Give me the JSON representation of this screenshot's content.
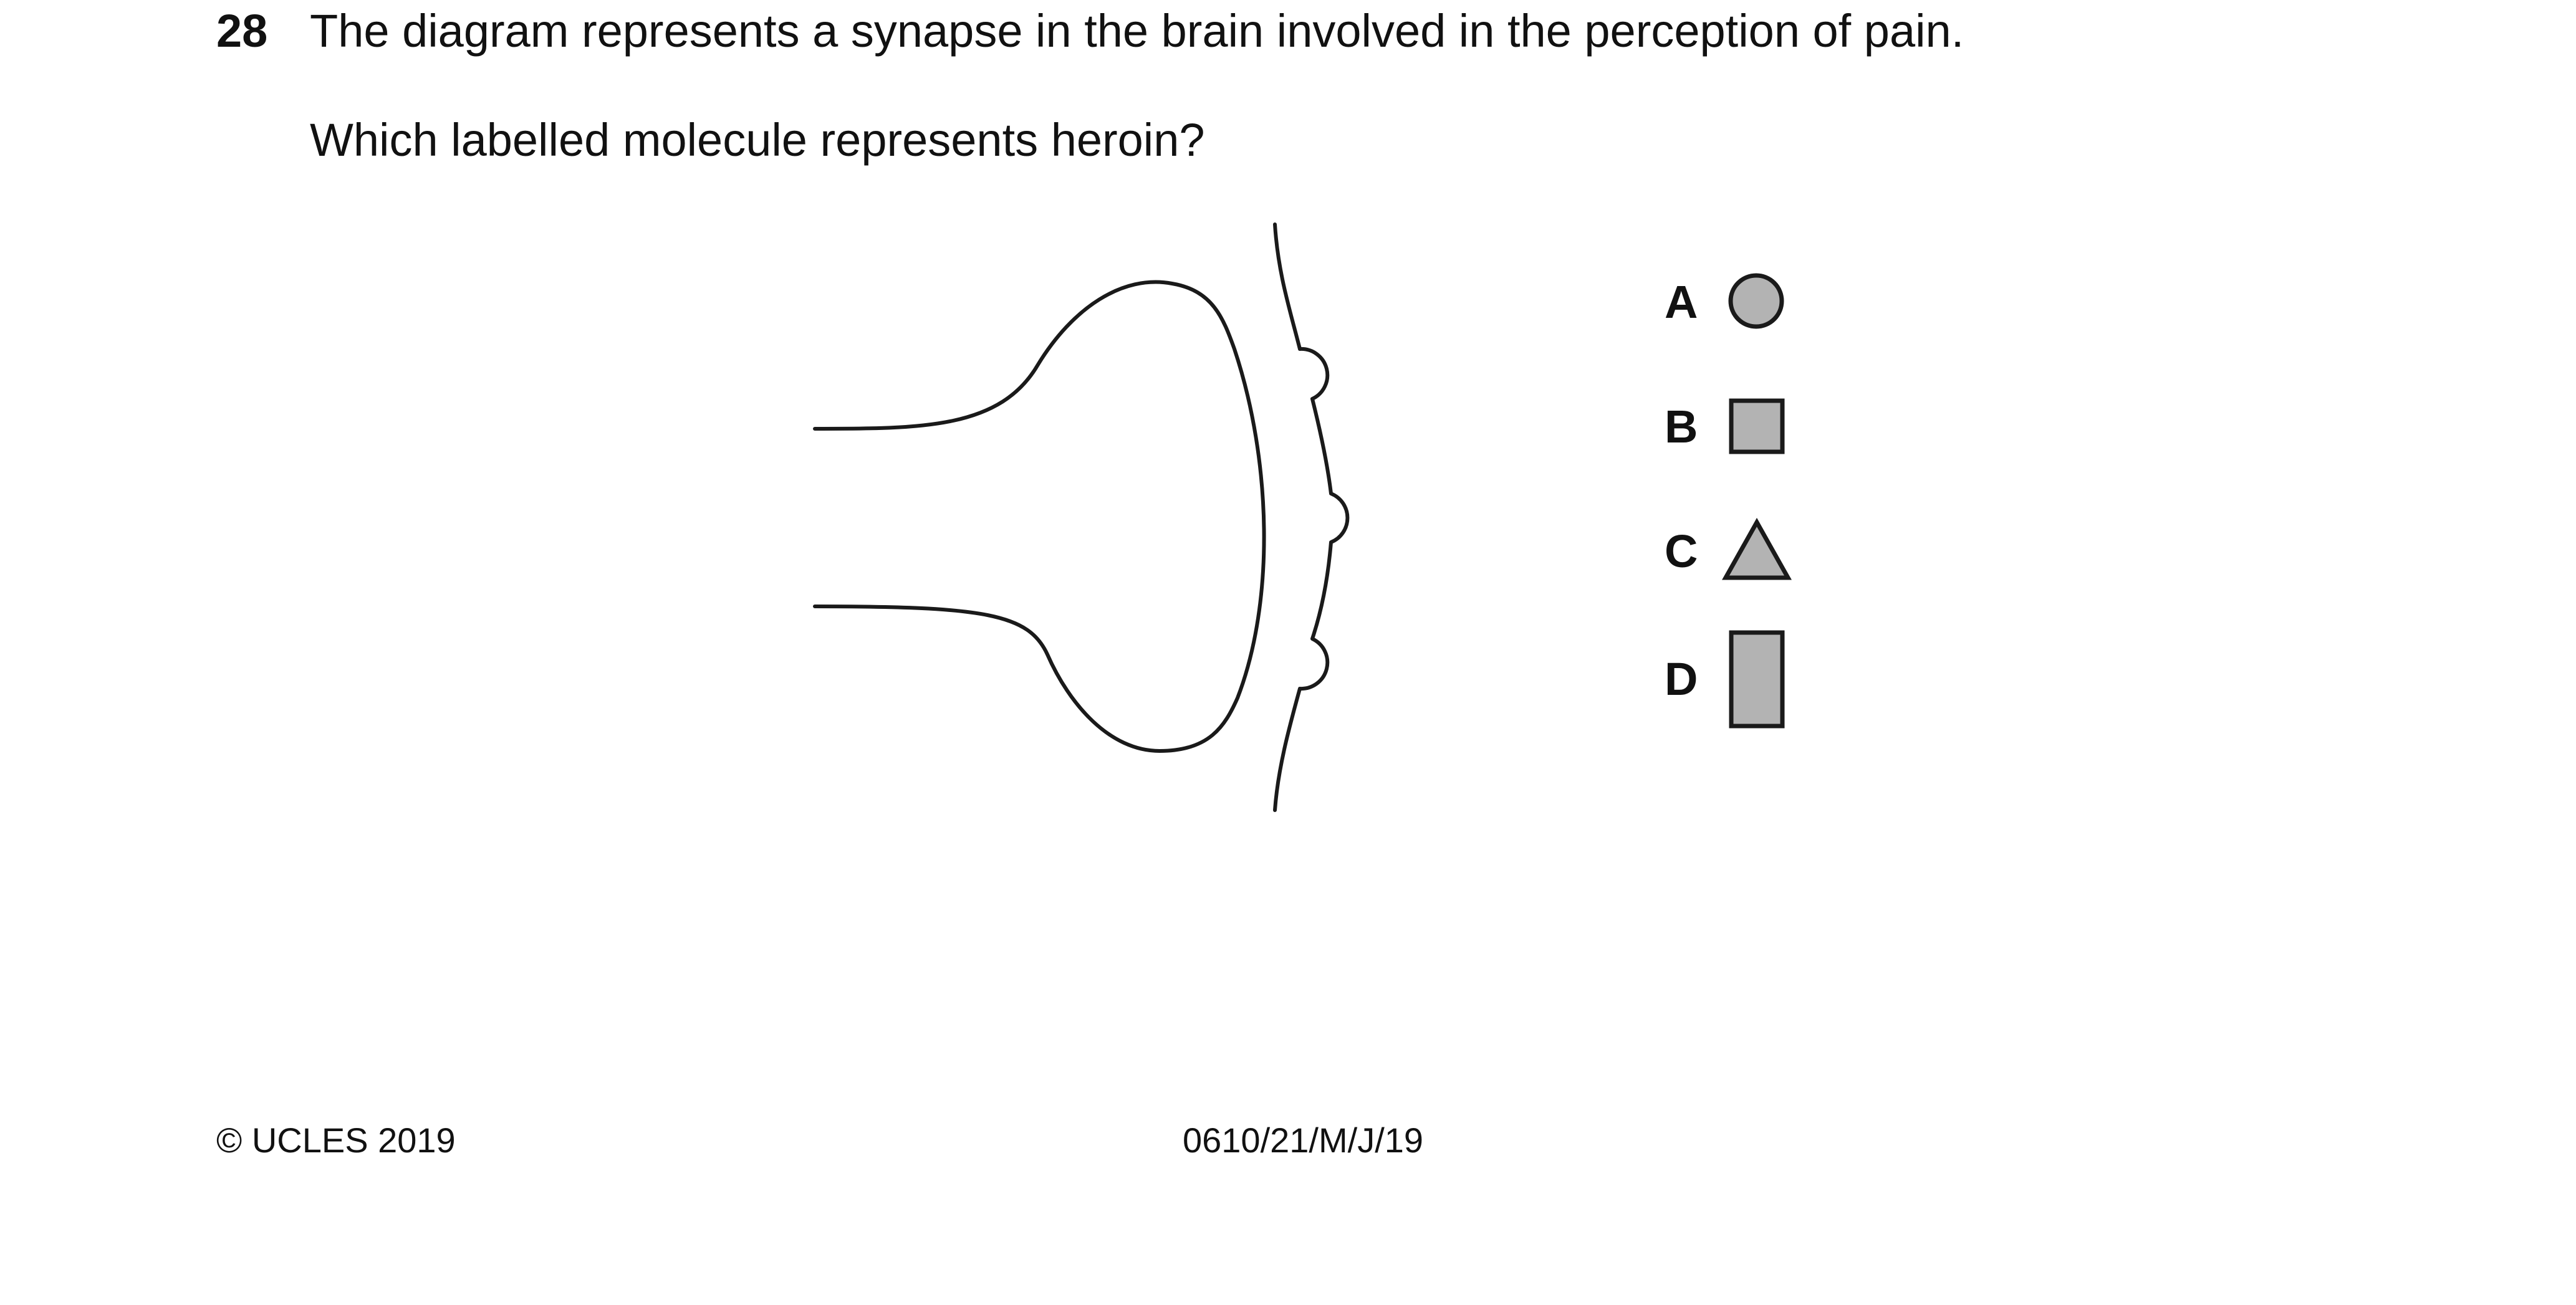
{
  "question": {
    "number": "28",
    "stem": "The diagram represents a synapse in the brain involved in the perception of pain.",
    "prompt": "Which labelled molecule represents heroin?"
  },
  "options": [
    {
      "letter": "A",
      "shape": "circle"
    },
    {
      "letter": "B",
      "shape": "square"
    },
    {
      "letter": "C",
      "shape": "triangle"
    },
    {
      "letter": "D",
      "shape": "rectangle"
    }
  ],
  "colors": {
    "molecule_fill": "#b3b3b3",
    "stroke": "#1a1a1a"
  },
  "footer": {
    "copyright": "© UCLES 2019",
    "code": "0610/21/M/J/19"
  }
}
